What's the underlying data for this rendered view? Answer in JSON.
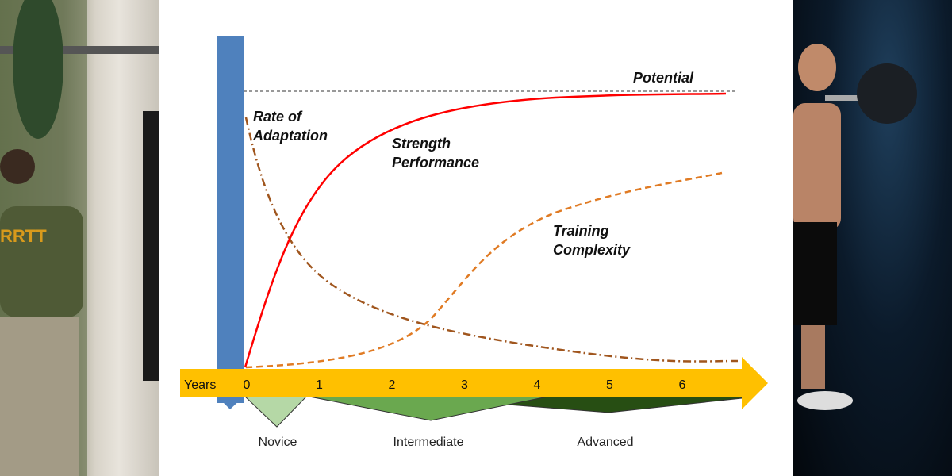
{
  "diagram": {
    "potential_label": "Potential",
    "rate_label": [
      "Rate of",
      "Adaptation"
    ],
    "strength_label": [
      "Strength",
      "Performance"
    ],
    "complexity_label": [
      "Training",
      "Complexity"
    ],
    "axis": {
      "label": "Years",
      "ticks": [
        "0",
        "1",
        "2",
        "3",
        "4",
        "5",
        "6"
      ]
    },
    "stages": [
      "Novice",
      "Intermediate",
      "Advanced"
    ],
    "colors": {
      "strength": "#ff0000",
      "complexity": "#e07b24",
      "rate": "#a0561e",
      "axis": "#ffc000",
      "bar": "#4f81bd",
      "novice": "#b5d8a6",
      "intermediate": "#6aa84f",
      "advanced": "#274e13"
    }
  }
}
